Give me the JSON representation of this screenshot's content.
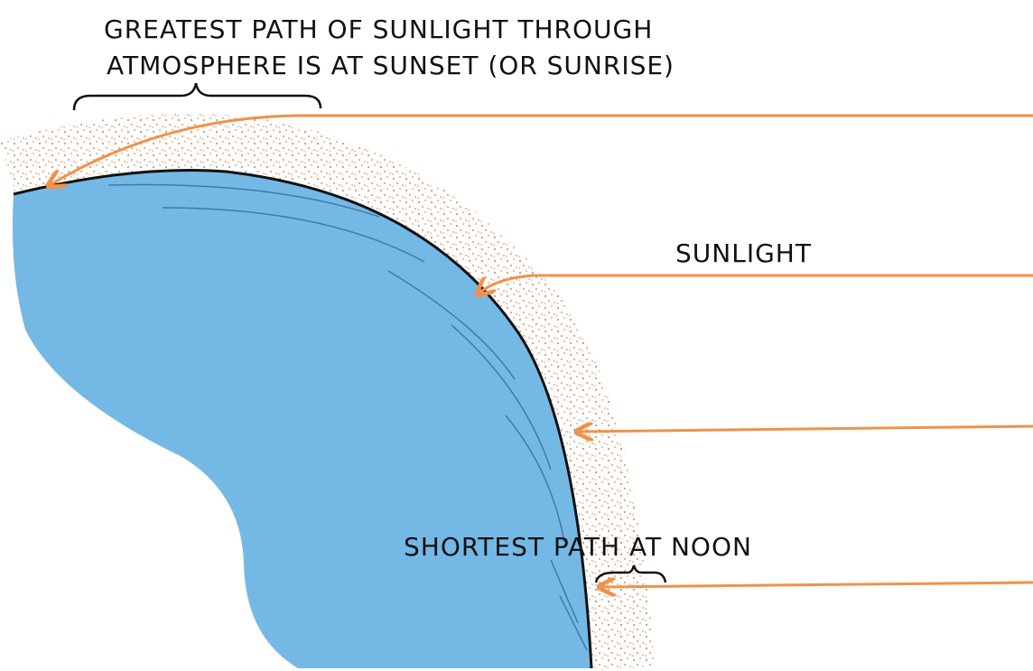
{
  "caption": {
    "lines": [
      "GREATEST PATH OF SUNLIGHT THROUGH",
      "ATMOSPHERE IS AT SUNSET (OR SUNRISE)"
    ]
  },
  "labels": {
    "sunlight": "SUNLIGHT",
    "noon": "SHORTEST PATH AT NOON"
  }
}
